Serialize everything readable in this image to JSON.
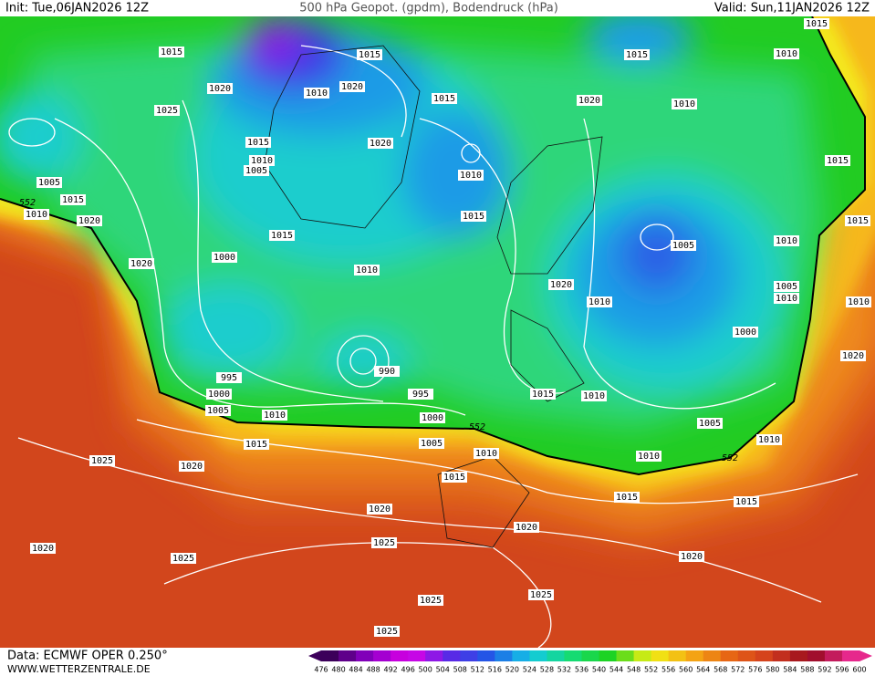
{
  "header": {
    "init": "Init: Tue,06JAN2026 12Z",
    "title": "500 hPa Geopot. (gpdm), Bodendruck (hPa)",
    "valid": "Valid: Sun,11JAN2026 12Z"
  },
  "footer": {
    "source": "Data: ECMWF OPER 0.250°",
    "site": "WWW.WETTERZENTRALE.DE"
  },
  "isobar_labels": [
    "1015",
    "1015",
    "1015",
    "1015",
    "1010",
    "1020",
    "1010",
    "1020",
    "1015",
    "1020",
    "1010",
    "1025",
    "1015",
    "1020",
    "1010",
    "1005",
    "1010",
    "1015",
    "1005",
    "1015",
    "1010",
    "1020",
    "1015",
    "1015",
    "1005",
    "1010",
    "1015",
    "1020",
    "1000",
    "1010",
    "1020",
    "1005",
    "1010",
    "1010",
    "1000",
    "990",
    "995",
    "1000",
    "995",
    "1005",
    "1010",
    "1000",
    "1015",
    "1010",
    "1005",
    "1010",
    "1015",
    "1005",
    "1010",
    "1010",
    "1025",
    "1020",
    "1015",
    "1015",
    "1015",
    "1020",
    "1020",
    "1025",
    "1020",
    "1025",
    "1020",
    "1025",
    "1025",
    "1025",
    "1020",
    "1010"
  ],
  "height_labels": [
    "552",
    "552",
    "552"
  ],
  "colorbar": {
    "labels": [
      "476",
      "480",
      "484",
      "488",
      "492",
      "496",
      "500",
      "504",
      "508",
      "512",
      "516",
      "520",
      "524",
      "528",
      "532",
      "536",
      "540",
      "544",
      "548",
      "552",
      "556",
      "560",
      "564",
      "568",
      "572",
      "576",
      "580",
      "584",
      "588",
      "592",
      "596",
      "600"
    ]
  }
}
